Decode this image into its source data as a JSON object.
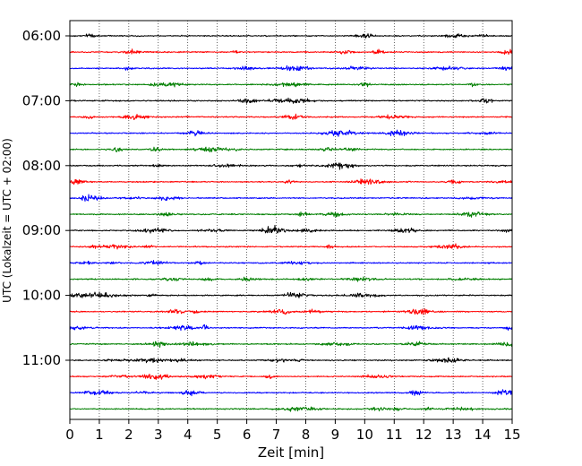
{
  "chart_data": {
    "type": "line",
    "xlabel": "Zeit  [min]",
    "ylabel": "UTC (Lokalzeit = UTC + 02:00)",
    "xlim": [
      0,
      15
    ],
    "x_ticks": [
      0,
      1,
      2,
      3,
      4,
      5,
      6,
      7,
      8,
      9,
      10,
      11,
      12,
      13,
      14,
      15
    ],
    "y_tick_labels": [
      "06:00",
      "07:00",
      "08:00",
      "09:00",
      "10:00",
      "11:00"
    ],
    "grid": "vertical dotted lines at each minute",
    "trace_minutes": 15,
    "trace_colors": [
      "#000000",
      "#ff0000",
      "#0000ff",
      "#007f00"
    ],
    "traces": [
      {
        "start": "06:00"
      },
      {
        "start": "06:15"
      },
      {
        "start": "06:30"
      },
      {
        "start": "06:45"
      },
      {
        "start": "07:00"
      },
      {
        "start": "07:15"
      },
      {
        "start": "07:30"
      },
      {
        "start": "07:45"
      },
      {
        "start": "08:00"
      },
      {
        "start": "08:15"
      },
      {
        "start": "08:30"
      },
      {
        "start": "08:45"
      },
      {
        "start": "09:00"
      },
      {
        "start": "09:15"
      },
      {
        "start": "09:30"
      },
      {
        "start": "09:45"
      },
      {
        "start": "10:00"
      },
      {
        "start": "10:15"
      },
      {
        "start": "10:30"
      },
      {
        "start": "10:45"
      },
      {
        "start": "11:00"
      },
      {
        "start": "11:15"
      },
      {
        "start": "11:30"
      },
      {
        "start": "11:45"
      }
    ]
  }
}
